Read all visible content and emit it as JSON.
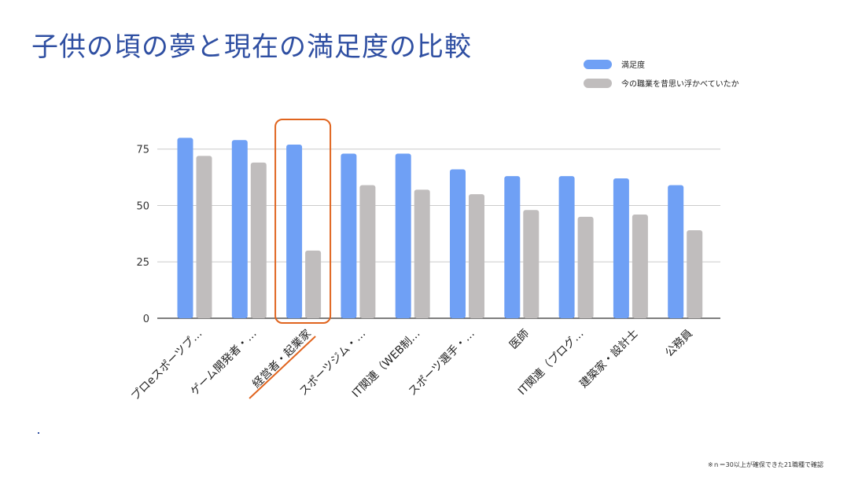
{
  "slide": {
    "title": "子供の頃の夢と現在の満足度の比較",
    "footnote": "※ｎ＝30以上が確保できた21職種で確認"
  },
  "chart_data": {
    "type": "bar",
    "categories": [
      "プロeスポーツプ…",
      "ゲーム開発者・…",
      "経営者・起業家",
      "スポーツジム・…",
      "IT関連（WEB制…",
      "スポーツ選手・…",
      "医師",
      "IT関連（プログ…",
      "建築家・設計士",
      "公務員"
    ],
    "series": [
      {
        "name": "満足度",
        "values": [
          80,
          79,
          77,
          73,
          73,
          66,
          63,
          63,
          62,
          59
        ]
      },
      {
        "name": "今の職業を昔思い浮かべていたか",
        "values": [
          72,
          69,
          30,
          59,
          57,
          55,
          48,
          45,
          46,
          39
        ]
      }
    ],
    "ylim": [
      0,
      85
    ],
    "yticks": [
      0,
      25,
      50,
      75
    ],
    "grid": true,
    "legend_position": "top-right",
    "highlight_category": "経営者・起業家",
    "colors": {
      "series": [
        "#6fa0f5",
        "#c0bdbd"
      ],
      "grid": "#cccccc",
      "axis": "#333333",
      "highlight": "#e0641e"
    }
  }
}
